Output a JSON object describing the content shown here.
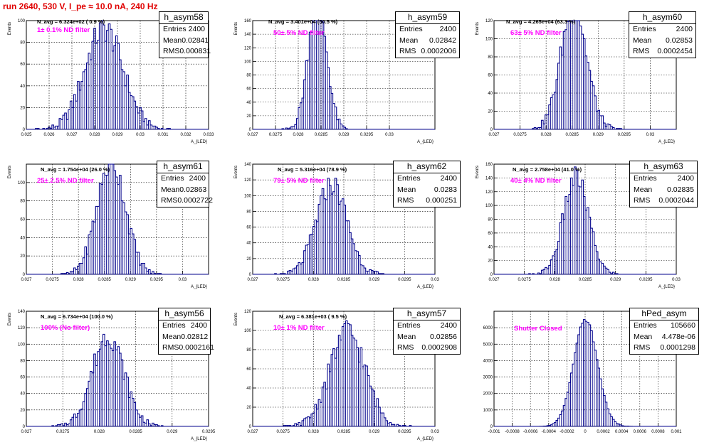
{
  "page_title": "run 2640,   530 V, I_pe ≈ 10.0 nA, 240 Hz",
  "stat_labels": {
    "entries": "Entries",
    "mean": "Mean",
    "rms": "RMS"
  },
  "chart_data": [
    {
      "type": "histogram",
      "name": "h_asym58",
      "entries": "2400",
      "mean": "0.02841",
      "rms": "0.000831",
      "navg": "N_avg = 6.324e+02 ( 0.9 %)",
      "annotation": "1± 0.1% ND filter",
      "ylabel": "Events",
      "xlabel": "A_{LED}",
      "xlim": [
        0.025,
        0.033
      ],
      "ylim": [
        0,
        100
      ],
      "xticks": [
        {
          "v": 0.025,
          "l": "0.025"
        },
        {
          "v": 0.026,
          "l": "0.026"
        },
        {
          "v": 0.027,
          "l": "0.027"
        },
        {
          "v": 0.028,
          "l": "0.028"
        },
        {
          "v": 0.029,
          "l": "0.029"
        },
        {
          "v": 0.03,
          "l": "0.03"
        },
        {
          "v": 0.031,
          "l": "0.031"
        },
        {
          "v": 0.032,
          "l": "0.032"
        },
        {
          "v": 0.033,
          "l": "0.033"
        }
      ],
      "yticks": [
        {
          "v": 0,
          "l": "0"
        },
        {
          "v": 20,
          "l": "20"
        },
        {
          "v": 40,
          "l": "40"
        },
        {
          "v": 60,
          "l": "60"
        },
        {
          "v": 80,
          "l": "80"
        },
        {
          "v": 100,
          "l": "100"
        }
      ]
    },
    {
      "type": "histogram",
      "name": "h_asym59",
      "entries": "2400",
      "mean": "0.02842",
      "rms": "0.0002006",
      "navg": "N_avg = 3.401e+04 (50.5 %)",
      "annotation": "50± 5% ND filter",
      "ylabel": "Events",
      "xlabel": "A_{LED}",
      "xlim": [
        0.027,
        0.031
      ],
      "ylim": [
        0,
        160
      ],
      "xticks": [
        {
          "v": 0.027,
          "l": "0.027"
        },
        {
          "v": 0.0275,
          "l": "0.0275"
        },
        {
          "v": 0.028,
          "l": "0.028"
        },
        {
          "v": 0.0285,
          "l": "0.0285"
        },
        {
          "v": 0.029,
          "l": "0.029"
        },
        {
          "v": 0.0295,
          "l": "0.0295"
        },
        {
          "v": 0.03,
          "l": "0.03"
        }
      ],
      "yticks": [
        {
          "v": 0,
          "l": "0"
        },
        {
          "v": 20,
          "l": "20"
        },
        {
          "v": 40,
          "l": "40"
        },
        {
          "v": 60,
          "l": "60"
        },
        {
          "v": 80,
          "l": "80"
        },
        {
          "v": 100,
          "l": "100"
        },
        {
          "v": 120,
          "l": "120"
        },
        {
          "v": 140,
          "l": "140"
        },
        {
          "v": 160,
          "l": "160"
        }
      ]
    },
    {
      "type": "histogram",
      "name": "h_asym60",
      "entries": "2400",
      "mean": "0.02853",
      "rms": "0.0002454",
      "navg": "N_avg = 4.265e+04 (63.3 %)",
      "annotation": "63± 5% ND filter",
      "ylabel": "Events",
      "xlabel": "A_{LED}",
      "xlim": [
        0.027,
        0.0305
      ],
      "ylim": [
        0,
        120
      ],
      "xticks": [
        {
          "v": 0.027,
          "l": "0.027"
        },
        {
          "v": 0.0275,
          "l": "0.0275"
        },
        {
          "v": 0.028,
          "l": "0.028"
        },
        {
          "v": 0.0285,
          "l": "0.0285"
        },
        {
          "v": 0.029,
          "l": "0.029"
        },
        {
          "v": 0.0295,
          "l": "0.0295"
        },
        {
          "v": 0.03,
          "l": "0.03"
        }
      ],
      "yticks": [
        {
          "v": 0,
          "l": "0"
        },
        {
          "v": 20,
          "l": "20"
        },
        {
          "v": 40,
          "l": "40"
        },
        {
          "v": 60,
          "l": "60"
        },
        {
          "v": 80,
          "l": "80"
        },
        {
          "v": 100,
          "l": "100"
        },
        {
          "v": 120,
          "l": "120"
        }
      ]
    },
    {
      "type": "histogram",
      "name": "h_asym61",
      "entries": "2400",
      "mean": "0.02863",
      "rms": "0.0002722",
      "navg": "N_avg = 1.754e+04 (26.0 %)",
      "annotation": "25± 2.5% ND filter",
      "ylabel": "Events",
      "xlabel": "A_{LED}",
      "xlim": [
        0.027,
        0.0305
      ],
      "ylim": [
        0,
        120
      ],
      "xticks": [
        {
          "v": 0.027,
          "l": "0.027"
        },
        {
          "v": 0.0275,
          "l": "0.0275"
        },
        {
          "v": 0.028,
          "l": "0.028"
        },
        {
          "v": 0.0285,
          "l": "0.0285"
        },
        {
          "v": 0.029,
          "l": "0.029"
        },
        {
          "v": 0.0295,
          "l": "0.0295"
        },
        {
          "v": 0.03,
          "l": "0.03"
        }
      ],
      "yticks": [
        {
          "v": 0,
          "l": "0"
        },
        {
          "v": 20,
          "l": "20"
        },
        {
          "v": 40,
          "l": "40"
        },
        {
          "v": 60,
          "l": "60"
        },
        {
          "v": 80,
          "l": "80"
        },
        {
          "v": 100,
          "l": "100"
        }
      ]
    },
    {
      "type": "histogram",
      "name": "h_asym62",
      "entries": "2400",
      "mean": "0.0283",
      "rms": "0.000251",
      "navg": "N_avg = 5.316e+04 (78.9 %)",
      "annotation": "79± 5% ND filter",
      "ylabel": "Events",
      "xlabel": "A_{LED}",
      "xlim": [
        0.027,
        0.03
      ],
      "ylim": [
        0,
        140
      ],
      "xticks": [
        {
          "v": 0.027,
          "l": "0.027"
        },
        {
          "v": 0.0275,
          "l": "0.0275"
        },
        {
          "v": 0.028,
          "l": "0.028"
        },
        {
          "v": 0.0285,
          "l": "0.0285"
        },
        {
          "v": 0.029,
          "l": "0.029"
        },
        {
          "v": 0.0295,
          "l": "0.0295"
        },
        {
          "v": 0.03,
          "l": "0.03"
        }
      ],
      "yticks": [
        {
          "v": 0,
          "l": "0"
        },
        {
          "v": 20,
          "l": "20"
        },
        {
          "v": 40,
          "l": "40"
        },
        {
          "v": 60,
          "l": "60"
        },
        {
          "v": 80,
          "l": "80"
        },
        {
          "v": 100,
          "l": "100"
        },
        {
          "v": 120,
          "l": "120"
        },
        {
          "v": 140,
          "l": "140"
        }
      ]
    },
    {
      "type": "histogram",
      "name": "h_asym63",
      "entries": "2400",
      "mean": "0.02835",
      "rms": "0.0002044",
      "navg": "N_avg = 2.758e+04 (41.0 %)",
      "annotation": "40± 4% ND filter",
      "ylabel": "Events",
      "xlabel": "A_{LED}",
      "xlim": [
        0.027,
        0.03
      ],
      "ylim": [
        0,
        160
      ],
      "xticks": [
        {
          "v": 0.027,
          "l": "0.027"
        },
        {
          "v": 0.0275,
          "l": "0.0275"
        },
        {
          "v": 0.028,
          "l": "0.028"
        },
        {
          "v": 0.0285,
          "l": "0.0285"
        },
        {
          "v": 0.029,
          "l": "0.029"
        },
        {
          "v": 0.0295,
          "l": "0.0295"
        },
        {
          "v": 0.03,
          "l": "0.03"
        }
      ],
      "yticks": [
        {
          "v": 0,
          "l": "0"
        },
        {
          "v": 20,
          "l": "20"
        },
        {
          "v": 40,
          "l": "40"
        },
        {
          "v": 60,
          "l": "60"
        },
        {
          "v": 80,
          "l": "80"
        },
        {
          "v": 100,
          "l": "100"
        },
        {
          "v": 120,
          "l": "120"
        },
        {
          "v": 140,
          "l": "140"
        },
        {
          "v": 160,
          "l": "160"
        }
      ]
    },
    {
      "type": "histogram",
      "name": "h_asym56",
      "entries": "2400",
      "mean": "0.02812",
      "rms": "0.0002161",
      "navg": "N_avg = 6.734e+04 (100.0 %)",
      "annotation": "100% (No filter)",
      "ylabel": "Events",
      "xlabel": "A_{LED}",
      "xlim": [
        0.027,
        0.0295
      ],
      "ylim": [
        0,
        140
      ],
      "xticks": [
        {
          "v": 0.027,
          "l": "0.027"
        },
        {
          "v": 0.0275,
          "l": "0.0275"
        },
        {
          "v": 0.028,
          "l": "0.028"
        },
        {
          "v": 0.0285,
          "l": "0.0285"
        },
        {
          "v": 0.029,
          "l": "0.029"
        },
        {
          "v": 0.0295,
          "l": "0.0295"
        }
      ],
      "yticks": [
        {
          "v": 0,
          "l": "0"
        },
        {
          "v": 20,
          "l": "20"
        },
        {
          "v": 40,
          "l": "40"
        },
        {
          "v": 60,
          "l": "60"
        },
        {
          "v": 80,
          "l": "80"
        },
        {
          "v": 100,
          "l": "100"
        },
        {
          "v": 120,
          "l": "120"
        },
        {
          "v": 140,
          "l": "140"
        }
      ]
    },
    {
      "type": "histogram",
      "name": "h_asym57",
      "entries": "2400",
      "mean": "0.02856",
      "rms": "0.0002908",
      "navg": "N_avg = 6.381e+03 ( 9.5 %)",
      "annotation": "10± 1% ND filter",
      "ylabel": "Events",
      "xlabel": "A_{LED}",
      "xlim": [
        0.027,
        0.03
      ],
      "ylim": [
        0,
        120
      ],
      "xticks": [
        {
          "v": 0.027,
          "l": "0.027"
        },
        {
          "v": 0.0275,
          "l": "0.0275"
        },
        {
          "v": 0.028,
          "l": "0.028"
        },
        {
          "v": 0.0285,
          "l": "0.0285"
        },
        {
          "v": 0.029,
          "l": "0.029"
        },
        {
          "v": 0.0295,
          "l": "0.0295"
        },
        {
          "v": 0.03,
          "l": "0.03"
        }
      ],
      "yticks": [
        {
          "v": 0,
          "l": "0"
        },
        {
          "v": 20,
          "l": "20"
        },
        {
          "v": 40,
          "l": "40"
        },
        {
          "v": 60,
          "l": "60"
        },
        {
          "v": 80,
          "l": "80"
        },
        {
          "v": 100,
          "l": "100"
        },
        {
          "v": 120,
          "l": "120"
        }
      ]
    },
    {
      "type": "histogram",
      "name": "hPed_asym",
      "entries": "105660",
      "mean": "4.478e-06",
      "rms": "0.0001298",
      "navg": "",
      "annotation": "Shutter Closed",
      "ylabel": "",
      "xlabel": "",
      "xlim": [
        -0.001,
        0.001
      ],
      "ylim": [
        0,
        7000
      ],
      "xticks": [
        {
          "v": -0.001,
          "l": "-0.001"
        },
        {
          "v": -0.0008,
          "l": "-0.0008"
        },
        {
          "v": -0.0006,
          "l": "-0.0006"
        },
        {
          "v": -0.0004,
          "l": "-0.0004"
        },
        {
          "v": -0.0002,
          "l": "-0.0002"
        },
        {
          "v": 0,
          "l": "0"
        },
        {
          "v": 0.0002,
          "l": "0.0002"
        },
        {
          "v": 0.0004,
          "l": "0.0004"
        },
        {
          "v": 0.0006,
          "l": "0.0006"
        },
        {
          "v": 0.0008,
          "l": "0.0008"
        },
        {
          "v": 0.001,
          "l": "0.001"
        }
      ],
      "yticks": [
        {
          "v": 0,
          "l": "0"
        },
        {
          "v": 1000,
          "l": "1000"
        },
        {
          "v": 2000,
          "l": "2000"
        },
        {
          "v": 3000,
          "l": "3000"
        },
        {
          "v": 4000,
          "l": "4000"
        },
        {
          "v": 5000,
          "l": "5000"
        },
        {
          "v": 6000,
          "l": "6000"
        }
      ]
    }
  ]
}
